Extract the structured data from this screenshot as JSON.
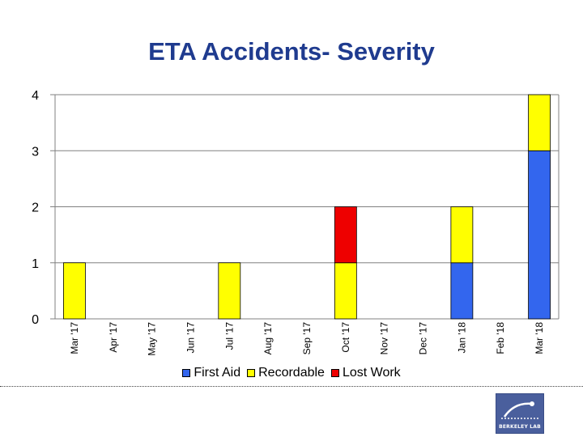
{
  "chart_data": {
    "type": "bar",
    "stacked": true,
    "title": "ETA Accidents- Severity",
    "categories": [
      "Mar '17",
      "Apr '17",
      "May '17",
      "Jun '17",
      "Jul '17",
      "Aug '17",
      "Sep '17",
      "Oct '17",
      "Nov '17",
      "Dec '17",
      "Jan '18",
      "Feb '18",
      "Mar '18"
    ],
    "series": [
      {
        "name": "First Aid",
        "color": "#3366ee",
        "values": [
          0,
          0,
          0,
          0,
          0,
          0,
          0,
          0,
          0,
          0,
          1,
          0,
          3
        ]
      },
      {
        "name": "Recordable",
        "color": "#ffff00",
        "values": [
          1,
          0,
          0,
          0,
          1,
          0,
          0,
          1,
          0,
          0,
          1,
          0,
          1
        ]
      },
      {
        "name": "Lost Work",
        "color": "#ee0000",
        "values": [
          0,
          0,
          0,
          0,
          0,
          0,
          0,
          1,
          0,
          0,
          0,
          0,
          0
        ]
      }
    ],
    "yticks": [
      "0",
      "1",
      "2",
      "3",
      "4"
    ],
    "ylim": [
      0,
      4
    ],
    "xlabel": "",
    "ylabel": "",
    "grid": true,
    "legend": "bottom"
  },
  "logo": {
    "name": "berkeley-lab-logo",
    "text": "BERKELEY LAB"
  }
}
